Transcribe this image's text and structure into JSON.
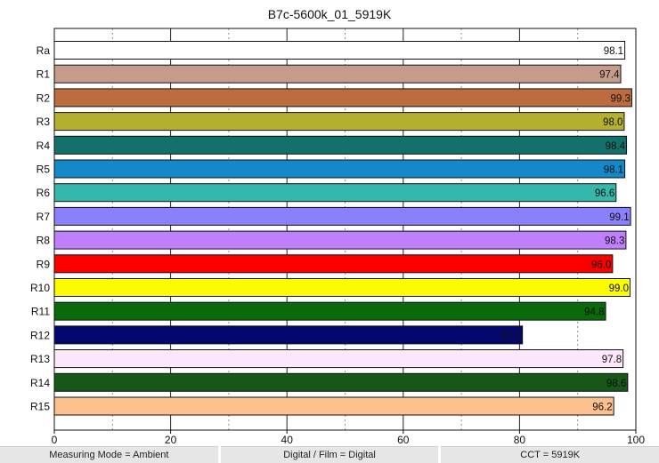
{
  "chart_data": {
    "type": "bar",
    "orientation": "horizontal",
    "title": "B7c-5600k_01_5919K",
    "xlim": [
      0,
      100
    ],
    "xticks": [
      0,
      20,
      40,
      60,
      80,
      100
    ],
    "grid": "vertical",
    "categories": [
      "Ra",
      "R1",
      "R2",
      "R3",
      "R4",
      "R5",
      "R6",
      "R7",
      "R8",
      "R9",
      "R10",
      "R11",
      "R12",
      "R13",
      "R14",
      "R15"
    ],
    "values": [
      98.1,
      97.4,
      99.3,
      98.0,
      98.4,
      98.1,
      96.6,
      99.1,
      98.3,
      96.0,
      99.0,
      94.8,
      80.5,
      97.8,
      98.6,
      96.2
    ],
    "labels": [
      "98.1",
      "97.4",
      "99.3",
      "98.0",
      "98.4",
      "98.1",
      "96.6",
      "99.1",
      "98.3",
      "96.0",
      "99.0",
      "94.8",
      "80.5",
      "97.8",
      "98.6",
      "96.2"
    ],
    "colors": [
      "#ffffff",
      "#c59b8b",
      "#bd6c3f",
      "#b6b030",
      "#12726b",
      "#1488c8",
      "#36b7ab",
      "#8a80fb",
      "#c07ffc",
      "#fc0000",
      "#fcfc00",
      "#0a6a0a",
      "#06066f",
      "#fde8fb",
      "#175718",
      "#fec08c"
    ],
    "label_colors": [
      "#111111",
      "#111111",
      "#111111",
      "#111111",
      "#111111",
      "#111111",
      "#111111",
      "#111111",
      "#111111",
      "#111111",
      "#111111",
      "#111111",
      "#111111",
      "#111111",
      "#111111",
      "#111111"
    ]
  },
  "footer": {
    "measuring_mode": "Measuring Mode = Ambient",
    "digital_film": "Digital / Film = Digital",
    "cct": "CCT = 5919K"
  }
}
